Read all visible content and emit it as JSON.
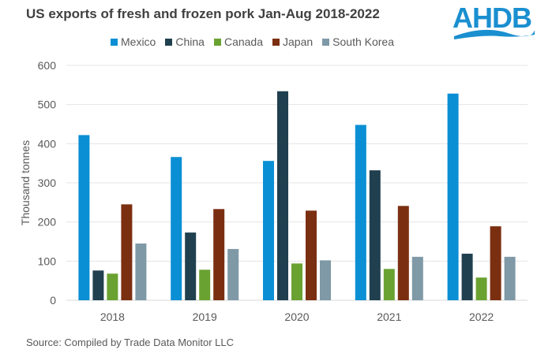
{
  "logo": {
    "text": "AHDB"
  },
  "source": "Source: Compiled by Trade Data Monitor LLC",
  "chart_data": {
    "type": "bar",
    "title": "US exports of fresh and frozen pork Jan-Aug 2018-2022",
    "xlabel": "",
    "ylabel": "Thousand tonnes",
    "ylim": [
      0,
      600
    ],
    "yticks": [
      0,
      100,
      200,
      300,
      400,
      500,
      600
    ],
    "grid": true,
    "legend": "top",
    "categories": [
      "2018",
      "2019",
      "2020",
      "2021",
      "2022"
    ],
    "series": [
      {
        "name": "Mexico",
        "color": "#0a8fd4",
        "values": [
          422,
          366,
          356,
          448,
          528
        ]
      },
      {
        "name": "China",
        "color": "#20404f",
        "values": [
          76,
          173,
          534,
          332,
          119
        ]
      },
      {
        "name": "Canada",
        "color": "#6aa232",
        "values": [
          68,
          78,
          94,
          80,
          58
        ]
      },
      {
        "name": "Japan",
        "color": "#7b2f11",
        "values": [
          245,
          233,
          229,
          241,
          189
        ]
      },
      {
        "name": "South Korea",
        "color": "#7f99a6",
        "values": [
          145,
          131,
          102,
          111,
          111
        ]
      }
    ]
  }
}
